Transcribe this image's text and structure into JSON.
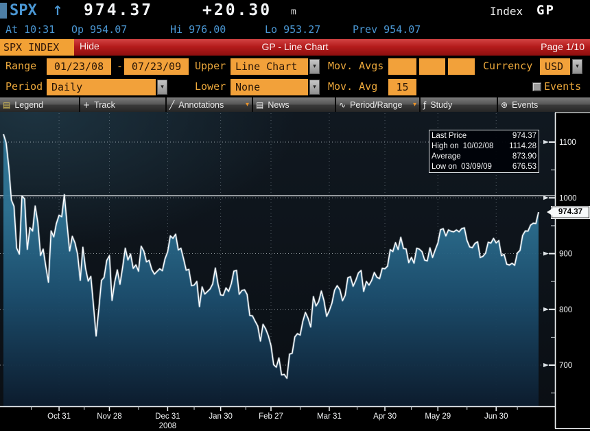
{
  "titlebar": {
    "ticker": "SPX",
    "arrow": "↑",
    "last": "974.37",
    "change": "+20.30",
    "suffix": "m",
    "right_label": "Index",
    "right_code": "GP"
  },
  "quote": {
    "at": "At 10:31",
    "op": "Op 954.07",
    "hi": "Hi 976.00",
    "lo": "Lo 953.27",
    "prev": "Prev 954.07"
  },
  "redbar": {
    "ticker_chip": "SPX INDEX",
    "hide": "Hide",
    "title": "GP - Line Chart",
    "page": "Page 1/10"
  },
  "ui": {
    "dropdown_glyph": "▾"
  },
  "controls": {
    "range_label": "Range",
    "range_start": "01/23/08",
    "range_dash": "-",
    "range_end": "07/23/09",
    "upper_label": "Upper",
    "upper_value": "Line Chart",
    "mov_avgs_label": "Mov. Avgs",
    "mov_avg_1": "",
    "mov_avg_2": "",
    "mov_avg_3": "",
    "currency_label": "Currency",
    "currency_value": "USD",
    "period_label": "Period",
    "period_value": "Daily",
    "lower_label": "Lower",
    "lower_value": "None",
    "mov_avg_label": "Mov. Avg",
    "mov_avg_value": "15",
    "events_label": "Events"
  },
  "toolbar": {
    "items": [
      {
        "icon": "▤",
        "label": "Legend",
        "dropdown": false
      },
      {
        "icon": "+",
        "label": "Track",
        "dropdown": false
      },
      {
        "icon": "╱",
        "label": "Annotations",
        "dropdown": true
      },
      {
        "icon": "▤",
        "label": "News",
        "dropdown": false
      },
      {
        "icon": "∿",
        "label": "Period/Range",
        "dropdown": true
      },
      {
        "icon": "ƒ",
        "label": "Study",
        "dropdown": false
      },
      {
        "icon": "⊛",
        "label": "Events",
        "dropdown": false
      }
    ]
  },
  "chart_data": {
    "type": "line",
    "symbol": "SPX Index",
    "ylim": [
      626.2,
      1154.2
    ],
    "y_ticks": [
      1100,
      1000,
      900,
      800,
      700
    ],
    "y_minor_ticks": [
      1050,
      950,
      850,
      750,
      650
    ],
    "solid_level": 1000,
    "x_tick_labels": [
      "Oct 31",
      "Nov 28",
      "Dec 31",
      "Jan 30",
      "Feb 27",
      "Mar 31",
      "Apr 30",
      "May 29",
      "Jun 30"
    ],
    "x_tick_indices": [
      21,
      40,
      62,
      82,
      101,
      123,
      144,
      164,
      186
    ],
    "year_label": "2008",
    "year_under_tick": 2,
    "last_price": 974.37,
    "last_price_label": "974.37",
    "info_box": {
      "rows": [
        {
          "label": "Last Price",
          "date": "",
          "value": "974.37"
        },
        {
          "label": "High on",
          "date": "10/02/08",
          "value": "1114.28"
        },
        {
          "label": "Average",
          "date": "",
          "value": "873.90"
        },
        {
          "label": "Low on",
          "date": "03/09/09",
          "value": "676.53"
        }
      ]
    },
    "values": [
      1114.28,
      1099.2,
      1056.9,
      996.2,
      984.9,
      909.9,
      899.2,
      1003.4,
      998.0,
      907.8,
      946.4,
      940.6,
      985.4,
      955.1,
      896.8,
      908.1,
      876.8,
      848.9,
      940.5,
      930.1,
      954.1,
      968.8,
      966.3,
      1005.8,
      952.8,
      904.9,
      931.0,
      919.2,
      899.0,
      852.3,
      911.3,
      873.3,
      850.8,
      859.1,
      806.6,
      752.4,
      800.0,
      851.8,
      857.4,
      887.7,
      896.2,
      816.2,
      848.8,
      870.7,
      845.2,
      876.1,
      909.7,
      888.7,
      899.2,
      873.6,
      879.7,
      868.6,
      913.2,
      904.4,
      885.3,
      887.9,
      871.6,
      863.2,
      868.2,
      872.8,
      869.4,
      890.6,
      903.3,
      931.8,
      927.5,
      934.7,
      906.7,
      909.7,
      890.4,
      870.3,
      871.8,
      842.6,
      843.7,
      850.1,
      805.2,
      840.2,
      827.5,
      832.0,
      836.6,
      845.7,
      874.1,
      845.1,
      825.9,
      825.4,
      838.5,
      832.2,
      845.9,
      868.6,
      869.9,
      827.2,
      833.7,
      835.2,
      826.8,
      789.2,
      788.4,
      778.9,
      770.1,
      743.3,
      773.1,
      764.9,
      752.8,
      735.1,
      700.8,
      696.3,
      712.9,
      682.6,
      683.4,
      676.53,
      719.6,
      721.4,
      750.7,
      756.6,
      753.9,
      778.1,
      794.4,
      784.0,
      768.5,
      822.9,
      806.1,
      813.9,
      832.9,
      815.9,
      787.5,
      797.9,
      811.1,
      834.4,
      842.5,
      835.5,
      815.6,
      825.2,
      856.6,
      858.7,
      841.5,
      852.1,
      865.3,
      869.6,
      832.4,
      850.1,
      843.6,
      851.9,
      866.2,
      857.5,
      855.2,
      873.6,
      872.8,
      877.5,
      907.2,
      903.8,
      919.5,
      907.4,
      929.2,
      909.2,
      908.4,
      883.9,
      893.1,
      882.9,
      909.7,
      908.1,
      903.5,
      888.3,
      887.0,
      910.3,
      893.1,
      906.8,
      919.1,
      942.9,
      944.7,
      931.8,
      942.5,
      940.1,
      939.1,
      942.4,
      939.2,
      944.9,
      946.2,
      923.7,
      912.0,
      910.7,
      918.4,
      921.2,
      893.0,
      895.1,
      900.9,
      920.3,
      918.9,
      927.2,
      919.3,
      923.3,
      896.4,
      898.7,
      881.0,
      879.6,
      882.7,
      879.1,
      901.1,
      905.8,
      932.7,
      940.7,
      940.4,
      951.1,
      954.6,
      954.1,
      974.37
    ]
  }
}
